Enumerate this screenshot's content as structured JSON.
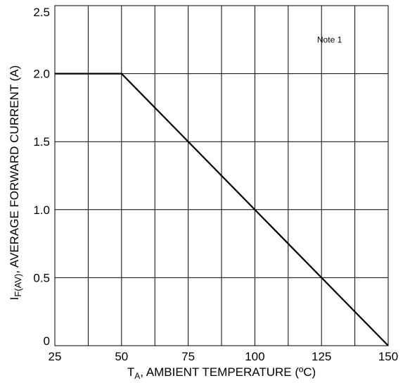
{
  "chart_data": {
    "type": "line",
    "title": "",
    "xlabel": {
      "main": "T",
      "sub": "A",
      "rest": ", AMBIENT TEMPERATURE (ºC)"
    },
    "ylabel": {
      "main": "I",
      "sub": "F(AV)",
      "rest": ", AVERAGE FORWARD CURRENT (A)"
    },
    "xlim": [
      25,
      150
    ],
    "ylim": [
      0,
      2.5
    ],
    "x_ticks": [
      25,
      50,
      75,
      100,
      125,
      150
    ],
    "x_tick_labels": [
      "25",
      "50",
      "75",
      "100",
      "125",
      "150"
    ],
    "y_ticks": [
      0,
      0.5,
      1.0,
      1.5,
      2.0,
      2.5
    ],
    "y_tick_labels": [
      "0",
      "0.5",
      "1.0",
      "1.5",
      "2.0",
      "2.5"
    ],
    "x_minor_step": 12.5,
    "grid": true,
    "series": [
      {
        "x": [
          25,
          50,
          150
        ],
        "y": [
          2.0,
          2.0,
          0
        ]
      }
    ],
    "annotations": [
      {
        "text": "Note 1",
        "x": 128,
        "y": 2.25
      }
    ],
    "colors": {
      "line": "#000000",
      "grid": "#000000",
      "background": "#ffffff"
    }
  }
}
